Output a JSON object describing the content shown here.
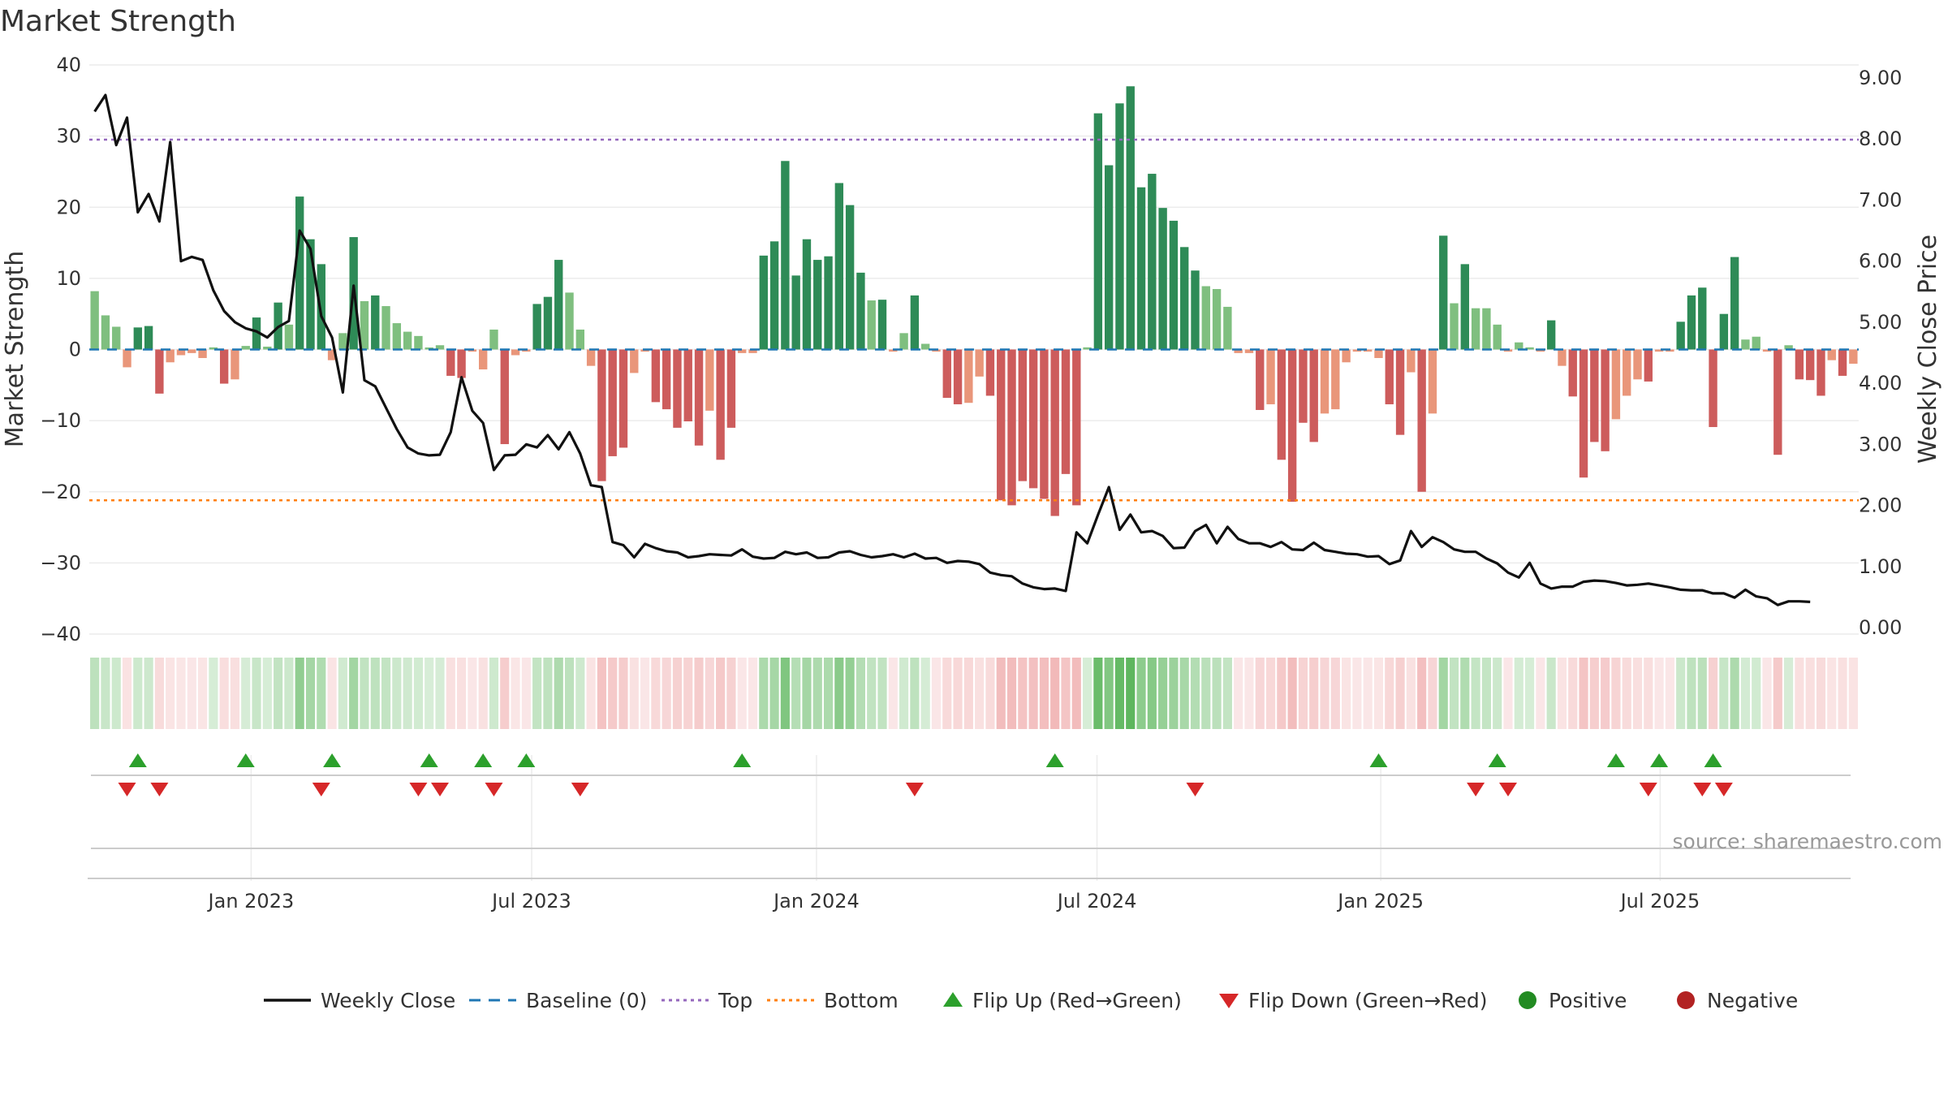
{
  "chart_data": {
    "type": "bar",
    "title": "Market Strength",
    "ylabel_left": "Market Strength",
    "ylabel_right": "Weekly Close Price",
    "ylim_left": [
      -40,
      40
    ],
    "ylim_right": [
      0,
      9
    ],
    "yticks_left": [
      "40",
      "30",
      "20",
      "10",
      "0",
      "−10",
      "−20",
      "−30",
      "−40"
    ],
    "yticks_right": [
      "9.00",
      "8.00",
      "7.00",
      "6.00",
      "5.00",
      "4.00",
      "3.00",
      "2.00",
      "1.00",
      "0.00"
    ],
    "x_ticks": [
      {
        "label": "Jan 2023",
        "week": 15
      },
      {
        "label": "Jul 2023",
        "week": 41
      },
      {
        "label": "Jan 2024",
        "week": 67.4
      },
      {
        "label": "Jul 2024",
        "week": 93.4
      },
      {
        "label": "Jan 2025",
        "week": 119.7
      },
      {
        "label": "Jul 2025",
        "week": 145.6
      }
    ],
    "top_threshold": 29.5,
    "bottom_threshold": -21.2,
    "baseline": 0,
    "grid": true,
    "legend_position": "bottom-center",
    "strength": [
      8.2,
      4.8,
      3.2,
      -2.5,
      3.1,
      3.3,
      -6.2,
      -1.8,
      -0.8,
      -0.5,
      -1.2,
      0.3,
      -4.8,
      -4.2,
      0.5,
      4.5,
      0.4,
      6.6,
      3.5,
      21.5,
      15.5,
      12,
      -1.5,
      2.3,
      15.8,
      6.8,
      7.6,
      6.1,
      3.7,
      2.5,
      1.9,
      0.2,
      0.6,
      -3.7,
      -4.0,
      -0.3,
      -2.8,
      2.8,
      -13.3,
      -0.8,
      -0.3,
      6.4,
      7.4,
      12.6,
      8.0,
      2.8,
      -2.3,
      -18.5,
      -15.0,
      -13.8,
      -3.3,
      -0.3,
      -7.4,
      -8.4,
      -11.0,
      -10.1,
      -13.5,
      -8.6,
      -15.5,
      -11.0,
      -0.5,
      -0.5,
      13.2,
      15.2,
      26.5,
      10.4,
      15.5,
      12.6,
      13.1,
      23.4,
      20.3,
      10.8,
      6.9,
      7.0,
      -0.3,
      2.3,
      7.6,
      0.8,
      -0.3,
      -6.8,
      -7.7,
      -7.5,
      -3.8,
      -6.5,
      -21.2,
      -21.9,
      -18.5,
      -19.5,
      -21.0,
      -23.4,
      -17.5,
      -21.9,
      0.3,
      33.2,
      25.9,
      34.6,
      37.0,
      22.8,
      24.7,
      19.9,
      18.1,
      14.4,
      11.1,
      8.9,
      8.5,
      6.0,
      -0.5,
      -0.5,
      -8.5,
      -7.7,
      -15.5,
      -21.4,
      -10.3,
      -13.0,
      -9.0,
      -8.4,
      -1.8,
      -0.3,
      -0.3,
      -1.2,
      -7.7,
      -12.0,
      -3.2,
      -20.0,
      -9.0,
      16.0,
      6.5,
      12.0,
      5.8,
      5.8,
      3.5,
      -0.3,
      1.0,
      0.3,
      -0.3,
      4.1,
      -2.3,
      -6.6,
      -18.0,
      -13.0,
      -14.3,
      -9.8,
      -6.5,
      -4.2,
      -4.5,
      -0.3,
      -0.3,
      3.9,
      7.6,
      8.7,
      -10.9,
      5.0,
      13.0,
      1.4,
      1.8,
      -0.3,
      -14.8,
      0.6,
      -4.2,
      -4.3,
      -6.5,
      -1.5,
      -3.7,
      -2.0
    ],
    "weekly_close": [
      8.45,
      8.72,
      7.9,
      8.35,
      6.8,
      7.1,
      6.65,
      7.95,
      6.0,
      6.07,
      6.02,
      5.52,
      5.18,
      5.0,
      4.9,
      4.85,
      4.75,
      4.92,
      5.02,
      6.5,
      6.2,
      5.1,
      4.75,
      3.85,
      5.6,
      4.05,
      3.95,
      3.6,
      3.25,
      2.95,
      2.85,
      2.82,
      2.83,
      3.2,
      4.1,
      3.55,
      3.35,
      2.58,
      2.82,
      2.83,
      3.0,
      2.95,
      3.15,
      2.92,
      3.2,
      2.85,
      2.33,
      2.3,
      1.4,
      1.35,
      1.15,
      1.37,
      1.3,
      1.25,
      1.23,
      1.15,
      1.17,
      1.2,
      1.19,
      1.18,
      1.28,
      1.16,
      1.13,
      1.14,
      1.24,
      1.2,
      1.23,
      1.14,
      1.15,
      1.23,
      1.25,
      1.19,
      1.15,
      1.17,
      1.2,
      1.15,
      1.21,
      1.13,
      1.14,
      1.06,
      1.09,
      1.08,
      1.04,
      0.9,
      0.86,
      0.84,
      0.72,
      0.66,
      0.63,
      0.64,
      0.6,
      1.56,
      1.38,
      1.85,
      2.3,
      1.6,
      1.85,
      1.56,
      1.58,
      1.5,
      1.3,
      1.31,
      1.58,
      1.68,
      1.38,
      1.65,
      1.45,
      1.38,
      1.38,
      1.32,
      1.4,
      1.28,
      1.27,
      1.39,
      1.27,
      1.24,
      1.21,
      1.2,
      1.16,
      1.17,
      1.04,
      1.1,
      1.58,
      1.32,
      1.48,
      1.4,
      1.28,
      1.24,
      1.24,
      1.13,
      1.05,
      0.9,
      0.82,
      1.06,
      0.72,
      0.64,
      0.67,
      0.67,
      0.75,
      0.77,
      0.76,
      0.73,
      0.69,
      0.7,
      0.72,
      0.69,
      0.66,
      0.62,
      0.61,
      0.61,
      0.56,
      0.56,
      0.49,
      0.62,
      0.51,
      0.48,
      0.37,
      0.43,
      0.43,
      0.42
    ],
    "flips_up_weeks": [
      4,
      14,
      22,
      31,
      36,
      40,
      60,
      89,
      119,
      130,
      141,
      145,
      150
    ],
    "flips_down_weeks": [
      3,
      6,
      21,
      30,
      32,
      37,
      45,
      76,
      102,
      128,
      131,
      144,
      149,
      151
    ],
    "source": "source: sharemaestro.com",
    "legend": [
      {
        "label": "Weekly Close",
        "kind": "line"
      },
      {
        "label": "Baseline (0)",
        "kind": "dash"
      },
      {
        "label": "Top",
        "kind": "dot-purple"
      },
      {
        "label": "Bottom",
        "kind": "dot-orange"
      },
      {
        "label": "Flip Up (Red→Green)",
        "kind": "tri-up"
      },
      {
        "label": "Flip Down (Green→Red)",
        "kind": "tri-down"
      },
      {
        "label": "Positive",
        "kind": "circle-green"
      },
      {
        "label": "Negative",
        "kind": "circle-red"
      }
    ],
    "colors": {
      "strong_pos": "#2e8b57",
      "weak_pos": "#7fbf7f",
      "strong_neg": "#cd5c5c",
      "weak_neg": "#e9967a",
      "close_line": "#111111",
      "baseline": "#1f77b4",
      "top_line": "#9467bd",
      "bottom_line": "#ff7f0e",
      "flip_up": "#2ca02c",
      "flip_down": "#d62728",
      "positive": "#228b22",
      "negative": "#b22222"
    }
  }
}
